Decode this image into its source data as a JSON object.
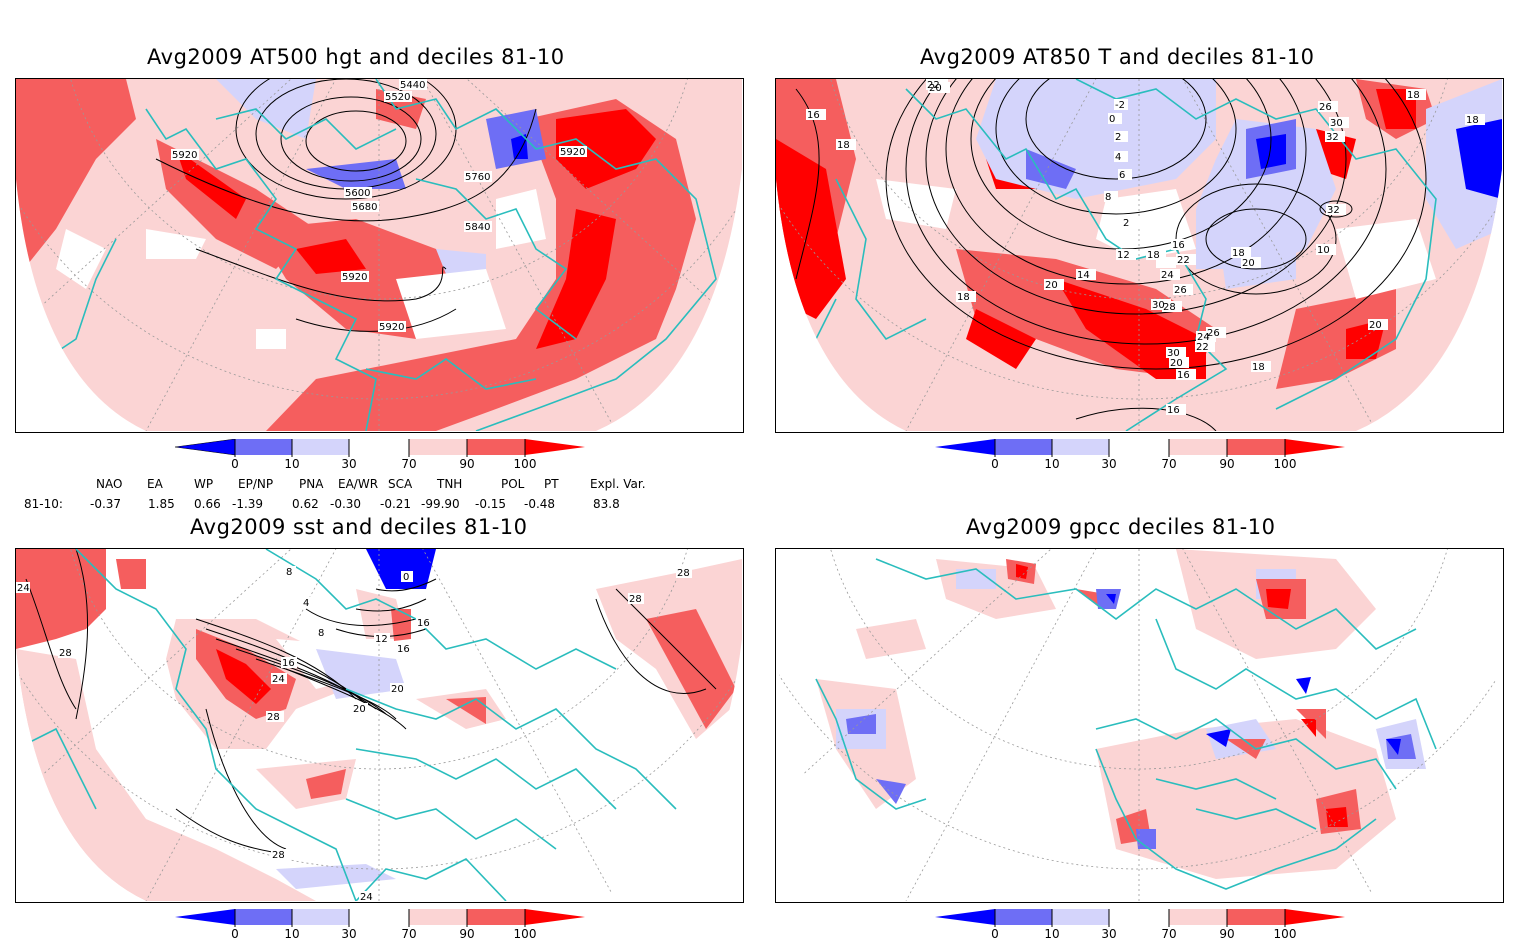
{
  "panels": [
    {
      "id": "hgt500",
      "title": "Avg2009 AT500 hgt and deciles 81-10",
      "contour_labels": [
        "5440",
        "5520",
        "5920",
        "5920",
        "5760",
        "5600",
        "5680",
        "5840",
        "5920",
        "5920"
      ]
    },
    {
      "id": "t850",
      "title": "Avg2009 AT850 T and deciles 81-10",
      "contour_labels": [
        "22",
        "20",
        "16",
        "18",
        "-2",
        "0",
        "2",
        "4",
        "6",
        "8",
        "2",
        "10",
        "12",
        "14",
        "16",
        "18",
        "20",
        "22",
        "24",
        "26",
        "28",
        "30",
        "32",
        "26",
        "30",
        "32",
        "20",
        "18",
        "18",
        "16",
        "20",
        "18",
        "18",
        "24",
        "22",
        "20",
        "26",
        "30",
        "18",
        "16",
        "20"
      ]
    },
    {
      "id": "sst",
      "title": "Avg2009 sst and deciles 81-10",
      "contour_labels": [
        "24",
        "28",
        "28",
        "28",
        "8",
        "4",
        "8",
        "12",
        "16",
        "16",
        "16",
        "20",
        "20",
        "24",
        "28",
        "28",
        "24",
        "0"
      ]
    },
    {
      "id": "gpcc",
      "title": "Avg2009 gpcc deciles 81-10",
      "contour_labels": []
    }
  ],
  "colorbar": {
    "tick_labels": [
      "0",
      "10",
      "30",
      "70",
      "90",
      "100"
    ],
    "colors": {
      "dark_blue": "#0000ff",
      "mid_blue": "#6e6ef5",
      "light_blue": "#d4d4fb",
      "white": "#ffffff",
      "light_red": "#fbd4d4",
      "mid_red": "#f55e5e",
      "dark_red": "#ff0000"
    }
  },
  "teleconnections": {
    "headers": [
      "NAO",
      "EA",
      "WP",
      "EP/NP",
      "PNA",
      "EA/WR",
      "SCA",
      "TNH",
      "POL",
      "PT",
      "Expl. Var."
    ],
    "row_label": "81-10:",
    "values": [
      "-0.37",
      "1.85",
      "0.66",
      "-1.39",
      "0.62",
      "-0.30",
      "-0.21",
      "-99.90",
      "-0.15",
      "-0.48",
      "83.8"
    ]
  },
  "colors": {
    "coastline": "#2abdbd",
    "contour": "#000000",
    "grid": "#999999"
  }
}
